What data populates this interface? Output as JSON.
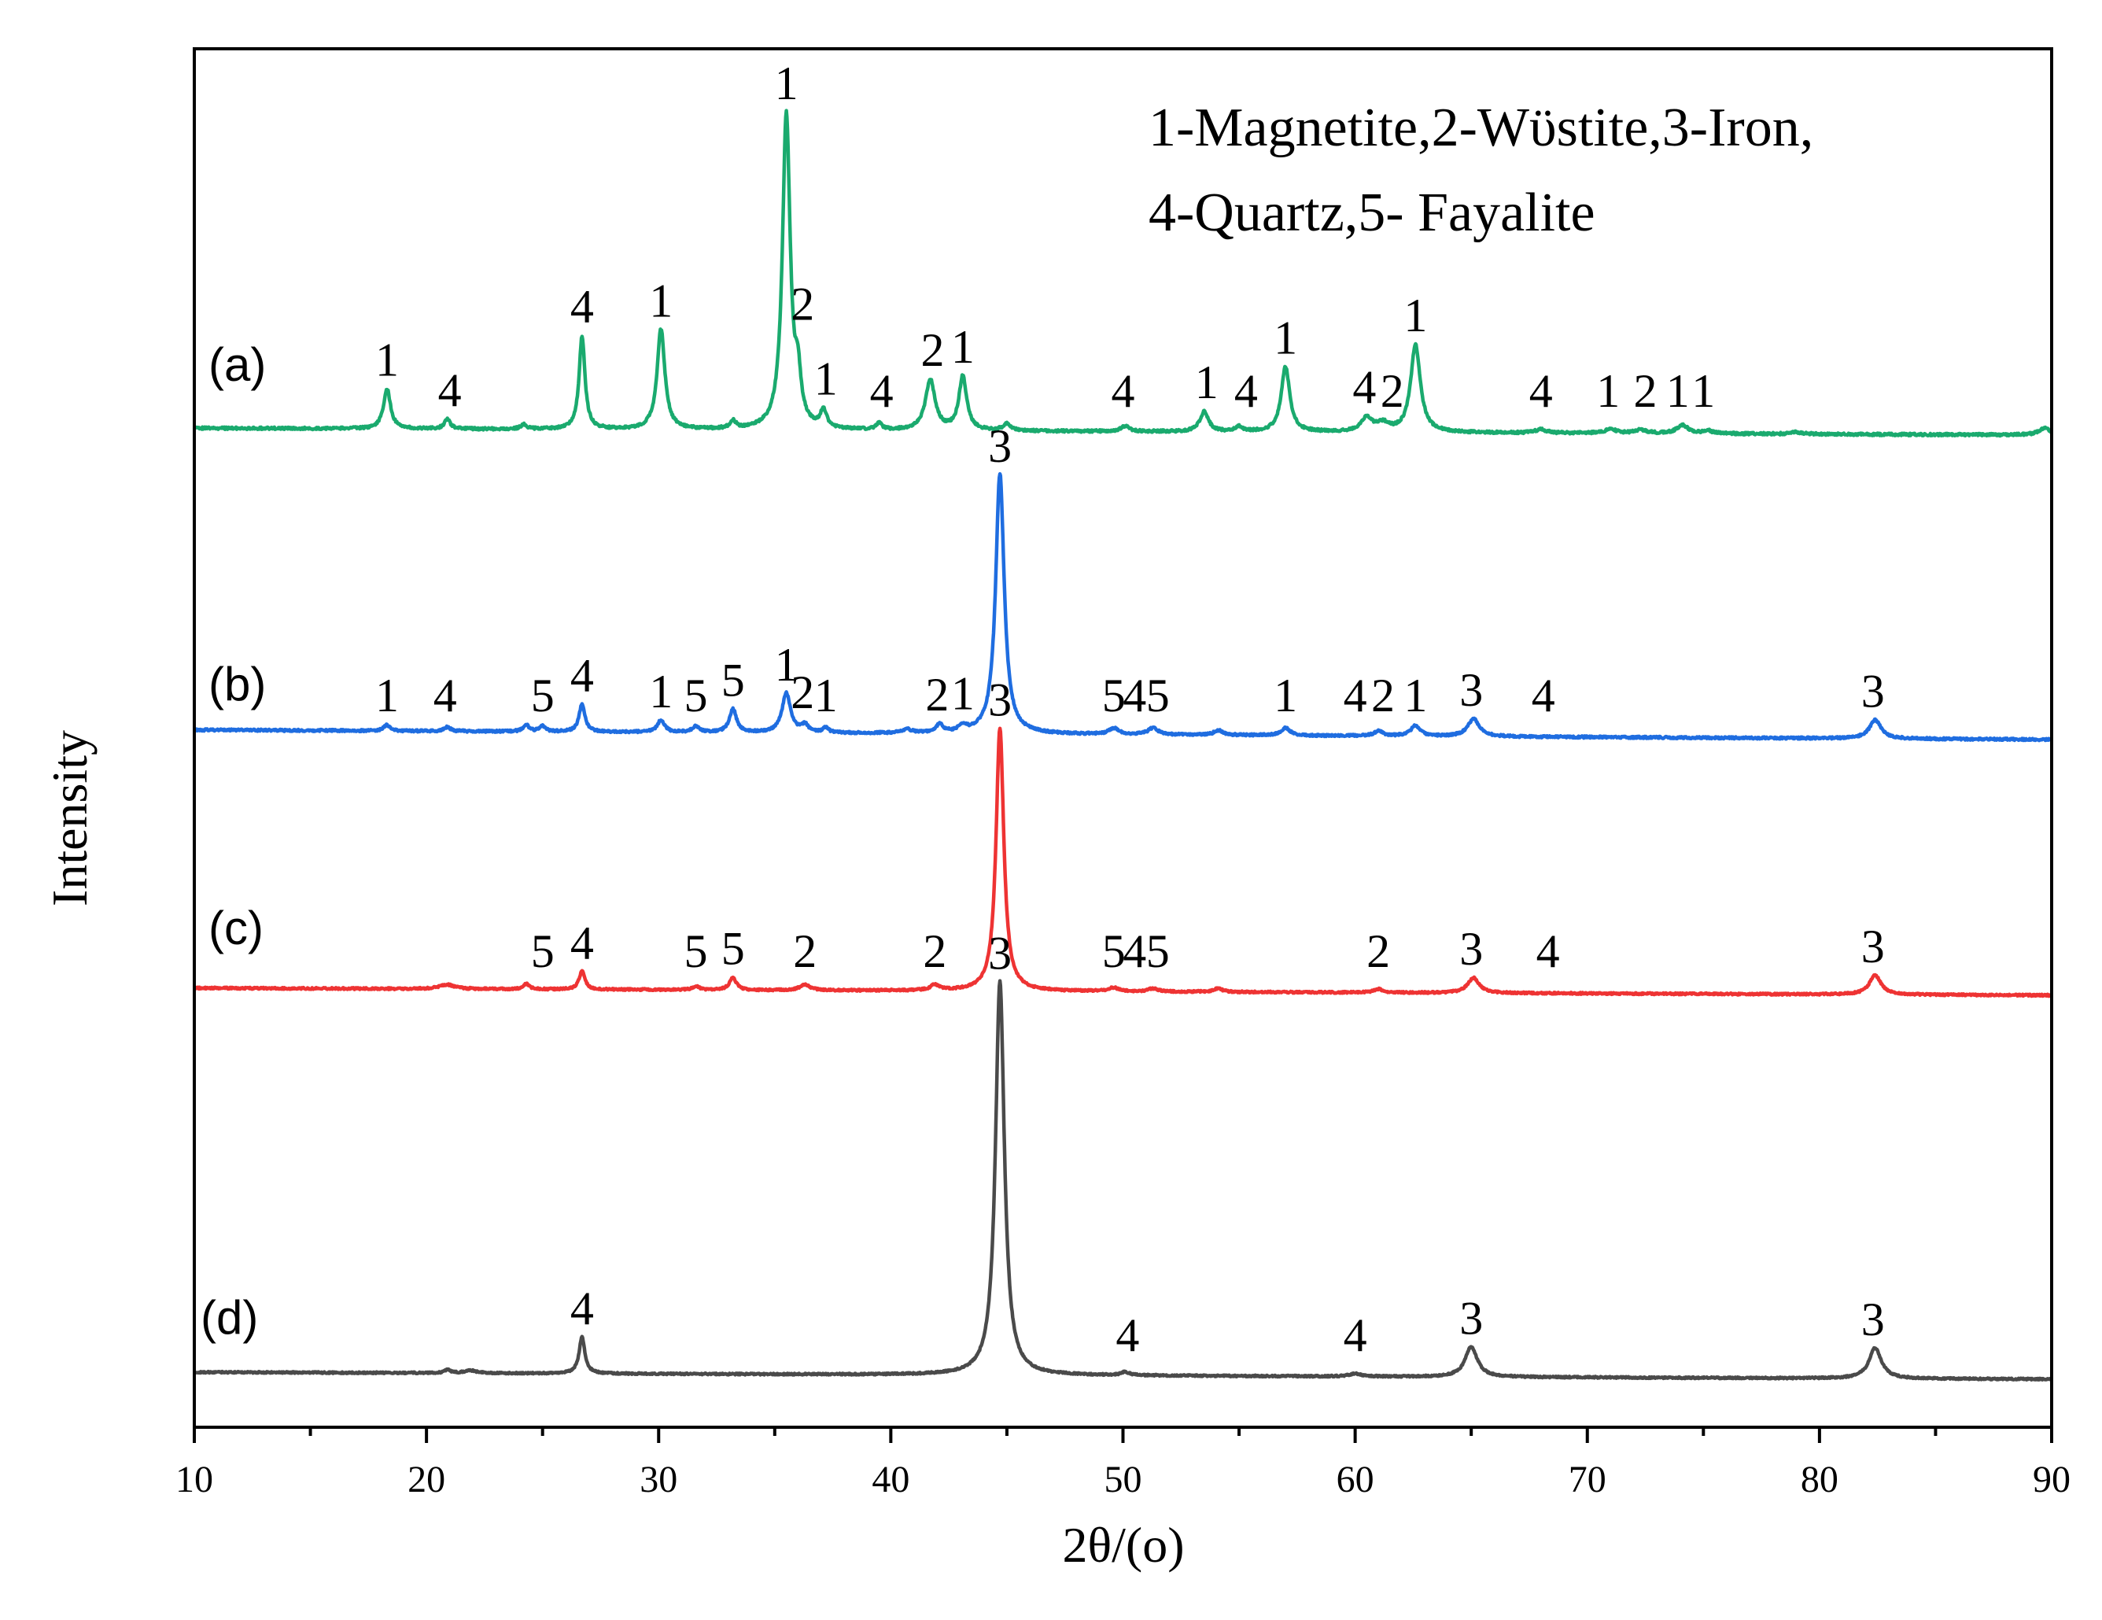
{
  "chart_data": {
    "type": "line",
    "title": "",
    "xlabel": "2θ/(o)",
    "ylabel": "Intensity",
    "xlim": [
      10,
      90
    ],
    "xticks": [
      "10",
      "20",
      "30",
      "40",
      "50",
      "60",
      "70",
      "80",
      "90"
    ],
    "xtick_values": [
      10,
      20,
      30,
      40,
      50,
      60,
      70,
      80,
      90
    ],
    "xticks_minor": [
      15,
      25,
      35,
      45,
      55,
      65,
      75,
      85
    ],
    "yticks": [],
    "grid": false,
    "intensity_range": [
      0,
      100
    ],
    "legend": {
      "line1": "1-Magnetite,2-Wϋstite,3-Iron,",
      "line2": "4-Quartz,5- Fayalite",
      "position": "top-right"
    },
    "series": [
      {
        "name": "(a)",
        "color": "#1aaa6e",
        "baseline_start": 1.0,
        "baseline_end": 0.0,
        "noise": 0.35,
        "peaks": [
          [
            18.3,
            5.8,
            0.18
          ],
          [
            20.9,
            1.4,
            0.15
          ],
          [
            24.2,
            0.7,
            0.15
          ],
          [
            26.7,
            13.5,
            0.15
          ],
          [
            30.1,
            14.5,
            0.2
          ],
          [
            33.2,
            1.1,
            0.15
          ],
          [
            35.5,
            45.5,
            0.2
          ],
          [
            36.0,
            6.0,
            0.15
          ],
          [
            37.1,
            2.5,
            0.16
          ],
          [
            39.5,
            0.9,
            0.15
          ],
          [
            41.7,
            7.3,
            0.25
          ],
          [
            43.1,
            7.8,
            0.2
          ],
          [
            45.0,
            1.0,
            0.2
          ],
          [
            50.1,
            0.8,
            0.2
          ],
          [
            53.5,
            2.9,
            0.22
          ],
          [
            55.0,
            0.7,
            0.18
          ],
          [
            57.0,
            9.4,
            0.22
          ],
          [
            60.5,
            2.0,
            0.3
          ],
          [
            61.2,
            1.1,
            0.3
          ],
          [
            62.6,
            12.6,
            0.25
          ],
          [
            68.0,
            0.5,
            0.3
          ],
          [
            71.0,
            0.6,
            0.3
          ],
          [
            72.3,
            0.5,
            0.3
          ],
          [
            74.1,
            1.2,
            0.3
          ],
          [
            75.2,
            0.4,
            0.25
          ],
          [
            79.0,
            0.3,
            0.3
          ],
          [
            89.7,
            1.0,
            0.3
          ]
        ]
      },
      {
        "name": "(b)",
        "color": "#1f6de0",
        "baseline_start": 1.6,
        "baseline_end": 0.0,
        "noise": 0.35,
        "peaks": [
          [
            18.3,
            1.0,
            0.16
          ],
          [
            20.9,
            0.7,
            0.15
          ],
          [
            24.3,
            1.1,
            0.15
          ],
          [
            25.0,
            0.9,
            0.15
          ],
          [
            26.7,
            4.6,
            0.15
          ],
          [
            30.1,
            2.0,
            0.18
          ],
          [
            31.6,
            1.0,
            0.18
          ],
          [
            33.2,
            3.9,
            0.18
          ],
          [
            35.5,
            6.5,
            0.22
          ],
          [
            36.3,
            1.2,
            0.18
          ],
          [
            37.2,
            0.8,
            0.15
          ],
          [
            40.7,
            0.6,
            0.25
          ],
          [
            42.1,
            1.3,
            0.2
          ],
          [
            43.1,
            1.0,
            0.2
          ],
          [
            44.7,
            43.0,
            0.22
          ],
          [
            49.6,
            1.0,
            0.25
          ],
          [
            51.3,
            1.1,
            0.25
          ],
          [
            54.1,
            0.8,
            0.22
          ],
          [
            57.0,
            1.3,
            0.22
          ],
          [
            61.0,
            0.8,
            0.22
          ],
          [
            62.6,
            1.7,
            0.25
          ],
          [
            65.1,
            2.9,
            0.3
          ],
          [
            82.4,
            3.1,
            0.3
          ]
        ]
      },
      {
        "name": "(c)",
        "color": "#ee3333",
        "baseline_start": 1.2,
        "baseline_end": 0.0,
        "noise": 0.3,
        "peaks": [
          [
            20.9,
            0.7,
            0.4
          ],
          [
            24.3,
            0.9,
            0.15
          ],
          [
            26.7,
            3.0,
            0.15
          ],
          [
            31.6,
            0.6,
            0.18
          ],
          [
            33.2,
            2.0,
            0.18
          ],
          [
            36.3,
            1.0,
            0.25
          ],
          [
            41.9,
            0.9,
            0.22
          ],
          [
            44.7,
            43.5,
            0.2
          ],
          [
            49.6,
            0.6,
            0.25
          ],
          [
            51.3,
            0.5,
            0.25
          ],
          [
            54.1,
            0.6,
            0.22
          ],
          [
            61.0,
            0.6,
            0.22
          ],
          [
            65.1,
            2.5,
            0.3
          ],
          [
            82.4,
            3.2,
            0.3
          ]
        ]
      },
      {
        "name": "(d)",
        "color": "#4a4a4a",
        "baseline_start": 1.3,
        "baseline_end": 0.0,
        "noise": 0.3,
        "peaks": [
          [
            20.9,
            0.6,
            0.15
          ],
          [
            21.9,
            0.5,
            0.3
          ],
          [
            26.7,
            6.7,
            0.15
          ],
          [
            44.7,
            72.0,
            0.23
          ],
          [
            50.1,
            0.6,
            0.2
          ],
          [
            60.0,
            0.5,
            0.3
          ],
          [
            65.0,
            5.5,
            0.32
          ],
          [
            82.4,
            5.6,
            0.32
          ]
        ]
      }
    ],
    "peak_annotations": [
      {
        "series": "(a)",
        "items": [
          {
            "x": 18.3,
            "text": "1"
          },
          {
            "x": 21.0,
            "text": "4"
          },
          {
            "x": 26.7,
            "text": "4"
          },
          {
            "x": 30.1,
            "text": "1"
          },
          {
            "x": 35.5,
            "text": "1"
          },
          {
            "x": 36.2,
            "text": "2"
          },
          {
            "x": 37.2,
            "text": "1"
          },
          {
            "x": 39.6,
            "text": "4"
          },
          {
            "x": 41.8,
            "text": "2"
          },
          {
            "x": 43.1,
            "text": "1"
          },
          {
            "x": 50.0,
            "text": "4"
          },
          {
            "x": 53.6,
            "text": "1"
          },
          {
            "x": 55.3,
            "text": "4"
          },
          {
            "x": 57.0,
            "text": "1"
          },
          {
            "x": 60.4,
            "text": "4"
          },
          {
            "x": 61.6,
            "text": "2"
          },
          {
            "x": 62.6,
            "text": "1"
          },
          {
            "x": 68.0,
            "text": "4"
          },
          {
            "x": 70.9,
            "text": "1"
          },
          {
            "x": 72.5,
            "text": "2"
          },
          {
            "x": 73.9,
            "text": "1"
          },
          {
            "x": 75.0,
            "text": "1"
          }
        ]
      },
      {
        "series": "(b)",
        "items": [
          {
            "x": 18.3,
            "text": "1"
          },
          {
            "x": 20.8,
            "text": "4"
          },
          {
            "x": 25.0,
            "text": "5"
          },
          {
            "x": 26.7,
            "text": "4"
          },
          {
            "x": 30.1,
            "text": "1"
          },
          {
            "x": 31.6,
            "text": "5"
          },
          {
            "x": 33.2,
            "text": "5"
          },
          {
            "x": 35.5,
            "text": "1"
          },
          {
            "x": 36.2,
            "text": "2"
          },
          {
            "x": 37.2,
            "text": "1"
          },
          {
            "x": 42.0,
            "text": "2"
          },
          {
            "x": 43.1,
            "text": "1"
          },
          {
            "x": 44.7,
            "text": "3"
          },
          {
            "x": 49.6,
            "text": "5"
          },
          {
            "x": 50.5,
            "text": "4"
          },
          {
            "x": 51.5,
            "text": "5"
          },
          {
            "x": 57.0,
            "text": "1"
          },
          {
            "x": 60.0,
            "text": "4"
          },
          {
            "x": 61.2,
            "text": "2"
          },
          {
            "x": 62.6,
            "text": "1"
          },
          {
            "x": 65.0,
            "text": "3"
          },
          {
            "x": 68.1,
            "text": "4"
          },
          {
            "x": 82.3,
            "text": "3"
          }
        ]
      },
      {
        "series": "(c)",
        "items": [
          {
            "x": 25.0,
            "text": "5"
          },
          {
            "x": 26.7,
            "text": "4"
          },
          {
            "x": 31.6,
            "text": "5"
          },
          {
            "x": 33.2,
            "text": "5"
          },
          {
            "x": 36.3,
            "text": "2"
          },
          {
            "x": 41.9,
            "text": "2"
          },
          {
            "x": 44.7,
            "text": "3"
          },
          {
            "x": 49.6,
            "text": "5"
          },
          {
            "x": 50.5,
            "text": "4"
          },
          {
            "x": 51.5,
            "text": "5"
          },
          {
            "x": 61.0,
            "text": "2"
          },
          {
            "x": 65.0,
            "text": "3"
          },
          {
            "x": 68.3,
            "text": "4"
          },
          {
            "x": 82.3,
            "text": "3"
          }
        ]
      },
      {
        "series": "(d)",
        "items": [
          {
            "x": 26.7,
            "text": "4"
          },
          {
            "x": 44.7,
            "text": "3"
          },
          {
            "x": 50.2,
            "text": "4"
          },
          {
            "x": 60.0,
            "text": "4"
          },
          {
            "x": 65.0,
            "text": "3"
          },
          {
            "x": 82.3,
            "text": "3"
          }
        ]
      }
    ]
  }
}
